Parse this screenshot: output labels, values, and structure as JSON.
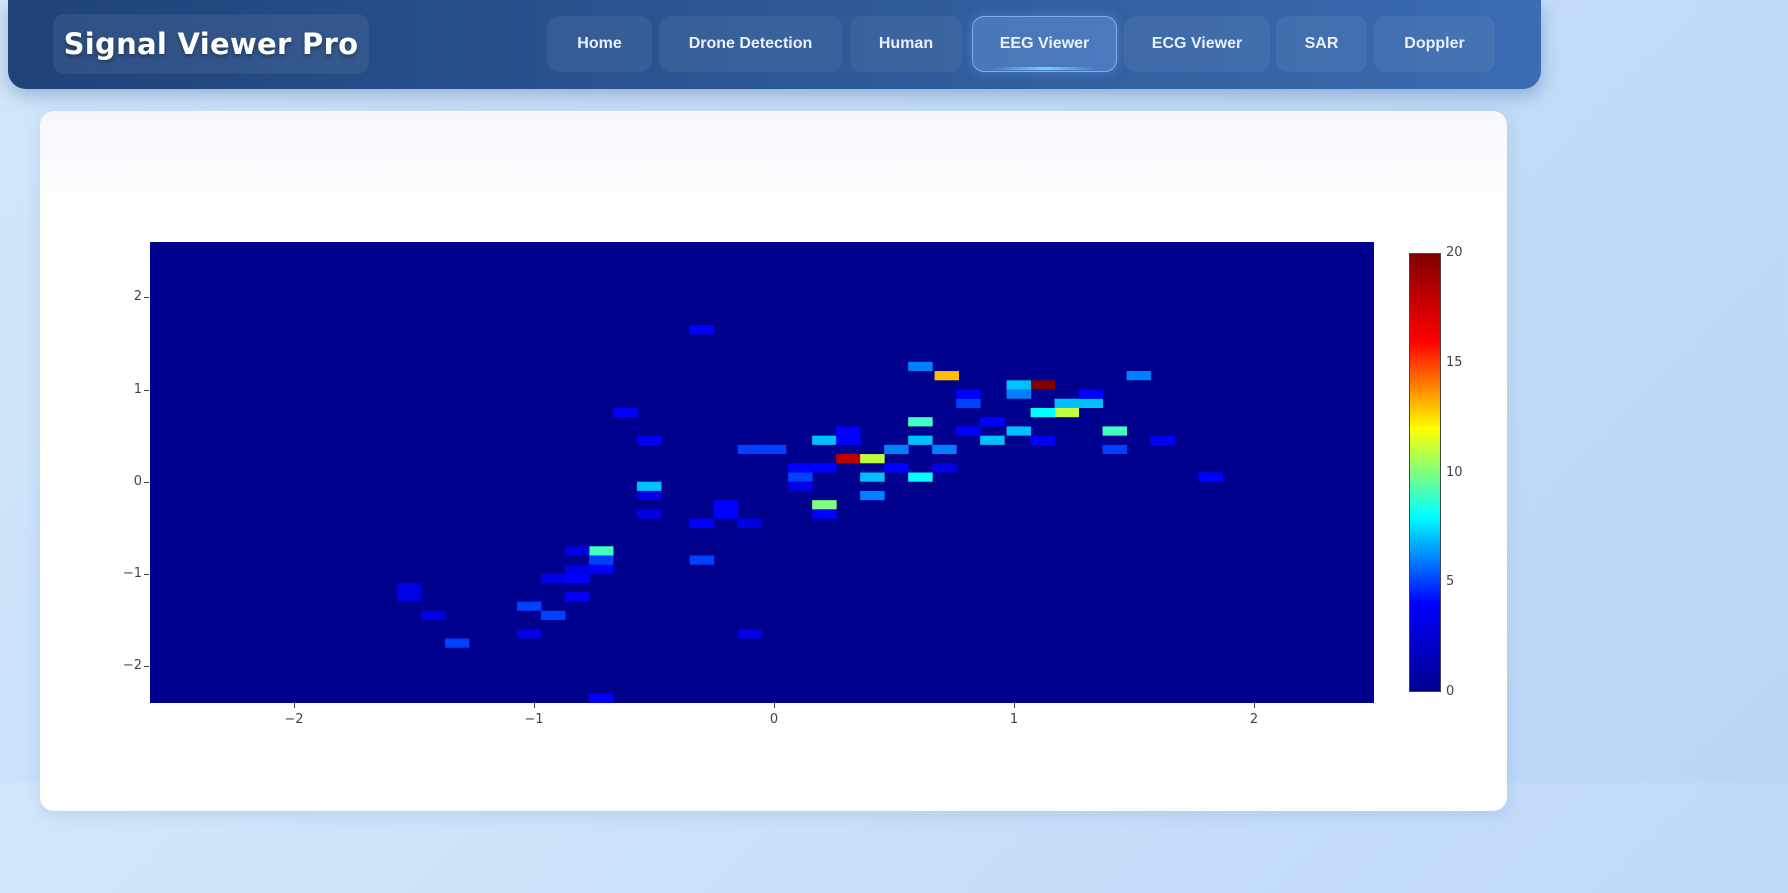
{
  "app": {
    "title": "Signal Viewer Pro"
  },
  "nav": {
    "tabs": [
      {
        "label": "Home",
        "active": false
      },
      {
        "label": "Drone Detection",
        "active": false
      },
      {
        "label": "Human",
        "active": false
      },
      {
        "label": "EEG Viewer",
        "active": true
      },
      {
        "label": "ECG Viewer",
        "active": false
      },
      {
        "label": "SAR",
        "active": false
      },
      {
        "label": "Doppler",
        "active": false
      }
    ]
  },
  "colors": {
    "navbar": "#2e5a98",
    "plot_background": "#00008f",
    "colorscale": [
      "#00008f",
      "#0000ff",
      "#00ffff",
      "#ffff00",
      "#ff0000",
      "#800000"
    ]
  },
  "chart_data": {
    "type": "heatmap",
    "x_range": [
      -2.6,
      2.5
    ],
    "y_range": [
      -2.4,
      2.6
    ],
    "x_ticks": [
      "−2",
      "−1",
      "0",
      "1",
      "2"
    ],
    "x_tick_values": [
      -2,
      -1,
      0,
      1,
      2
    ],
    "y_ticks": [
      "2",
      "1",
      "0",
      "−1",
      "−2"
    ],
    "y_tick_values": [
      2,
      1,
      0,
      -1,
      -2
    ],
    "colorbar": {
      "min": 0,
      "max": 20,
      "ticks": [
        "20",
        "15",
        "10",
        "5",
        "0"
      ],
      "tick_values": [
        20,
        15,
        10,
        5,
        0
      ]
    },
    "bin_size": {
      "x": 0.102,
      "y": 0.1
    },
    "cells": [
      [
        0.31,
        0.25,
        18
      ],
      [
        1.12,
        1.05,
        20
      ],
      [
        0.72,
        1.15,
        13
      ],
      [
        1.22,
        0.75,
        11
      ],
      [
        0.41,
        0.25,
        11
      ],
      [
        1.42,
        0.55,
        9
      ],
      [
        0.21,
        -0.25,
        10
      ],
      [
        -0.72,
        -0.75,
        9
      ],
      [
        0.61,
        0.65,
        9
      ],
      [
        0.61,
        0.05,
        8
      ],
      [
        1.02,
        1.05,
        7
      ],
      [
        0.61,
        0.45,
        7
      ],
      [
        0.41,
        0.05,
        7
      ],
      [
        1.52,
        1.15,
        6
      ],
      [
        1.12,
        0.75,
        8
      ],
      [
        1.22,
        0.85,
        7
      ],
      [
        0.21,
        0.45,
        7
      ],
      [
        -0.52,
        -0.05,
        7
      ],
      [
        0.91,
        0.45,
        7
      ],
      [
        1.02,
        0.95,
        6
      ],
      [
        0.71,
        0.35,
        6
      ],
      [
        1.02,
        0.55,
        7
      ],
      [
        1.32,
        0.85,
        7
      ],
      [
        0.81,
        0.85,
        5
      ],
      [
        0.41,
        -0.15,
        6
      ],
      [
        0.51,
        0.35,
        6
      ],
      [
        0.11,
        0.05,
        5
      ],
      [
        -0.1,
        0.35,
        5
      ],
      [
        0.0,
        0.35,
        5
      ],
      [
        -1.02,
        -1.35,
        5
      ],
      [
        -0.92,
        -1.45,
        5
      ],
      [
        -1.32,
        -1.75,
        5
      ],
      [
        -0.3,
        1.65,
        4
      ],
      [
        -0.3,
        -0.85,
        5
      ],
      [
        -0.72,
        -0.85,
        5
      ],
      [
        -0.82,
        -1.25,
        4
      ],
      [
        -0.82,
        -1.05,
        4
      ],
      [
        1.82,
        0.05,
        4
      ],
      [
        1.62,
        0.45,
        4
      ],
      [
        0.61,
        1.25,
        6
      ],
      [
        0.21,
        0.15,
        4
      ],
      [
        -0.52,
        0.45,
        4
      ],
      [
        -0.62,
        0.75,
        4
      ],
      [
        0.21,
        -0.35,
        4
      ],
      [
        -0.2,
        -0.35,
        4
      ],
      [
        -0.1,
        -1.65,
        3
      ],
      [
        -1.52,
        -1.15,
        3
      ],
      [
        -1.52,
        -1.25,
        3
      ],
      [
        -0.72,
        -2.35,
        4
      ],
      [
        -0.82,
        -0.95,
        3
      ],
      [
        -0.92,
        -1.05,
        3
      ],
      [
        0.31,
        0.55,
        4
      ],
      [
        0.81,
        0.95,
        4
      ],
      [
        0.91,
        0.65,
        4
      ],
      [
        1.32,
        0.95,
        4
      ],
      [
        1.42,
        0.35,
        5
      ],
      [
        0.51,
        0.15,
        4
      ],
      [
        0.71,
        0.15,
        3
      ],
      [
        0.81,
        0.55,
        4
      ],
      [
        1.12,
        0.45,
        4
      ],
      [
        0.31,
        0.45,
        4
      ],
      [
        0.11,
        0.15,
        4
      ],
      [
        0.11,
        -0.05,
        3
      ],
      [
        -0.2,
        -0.25,
        4
      ],
      [
        -0.1,
        -0.45,
        3
      ],
      [
        -0.3,
        -0.45,
        4
      ],
      [
        -0.52,
        -0.15,
        3
      ],
      [
        -0.52,
        -0.35,
        3
      ],
      [
        -0.72,
        -0.95,
        4
      ],
      [
        -1.02,
        -1.65,
        3
      ],
      [
        -1.42,
        -1.45,
        3
      ],
      [
        -0.82,
        -0.75,
        3
      ]
    ]
  }
}
